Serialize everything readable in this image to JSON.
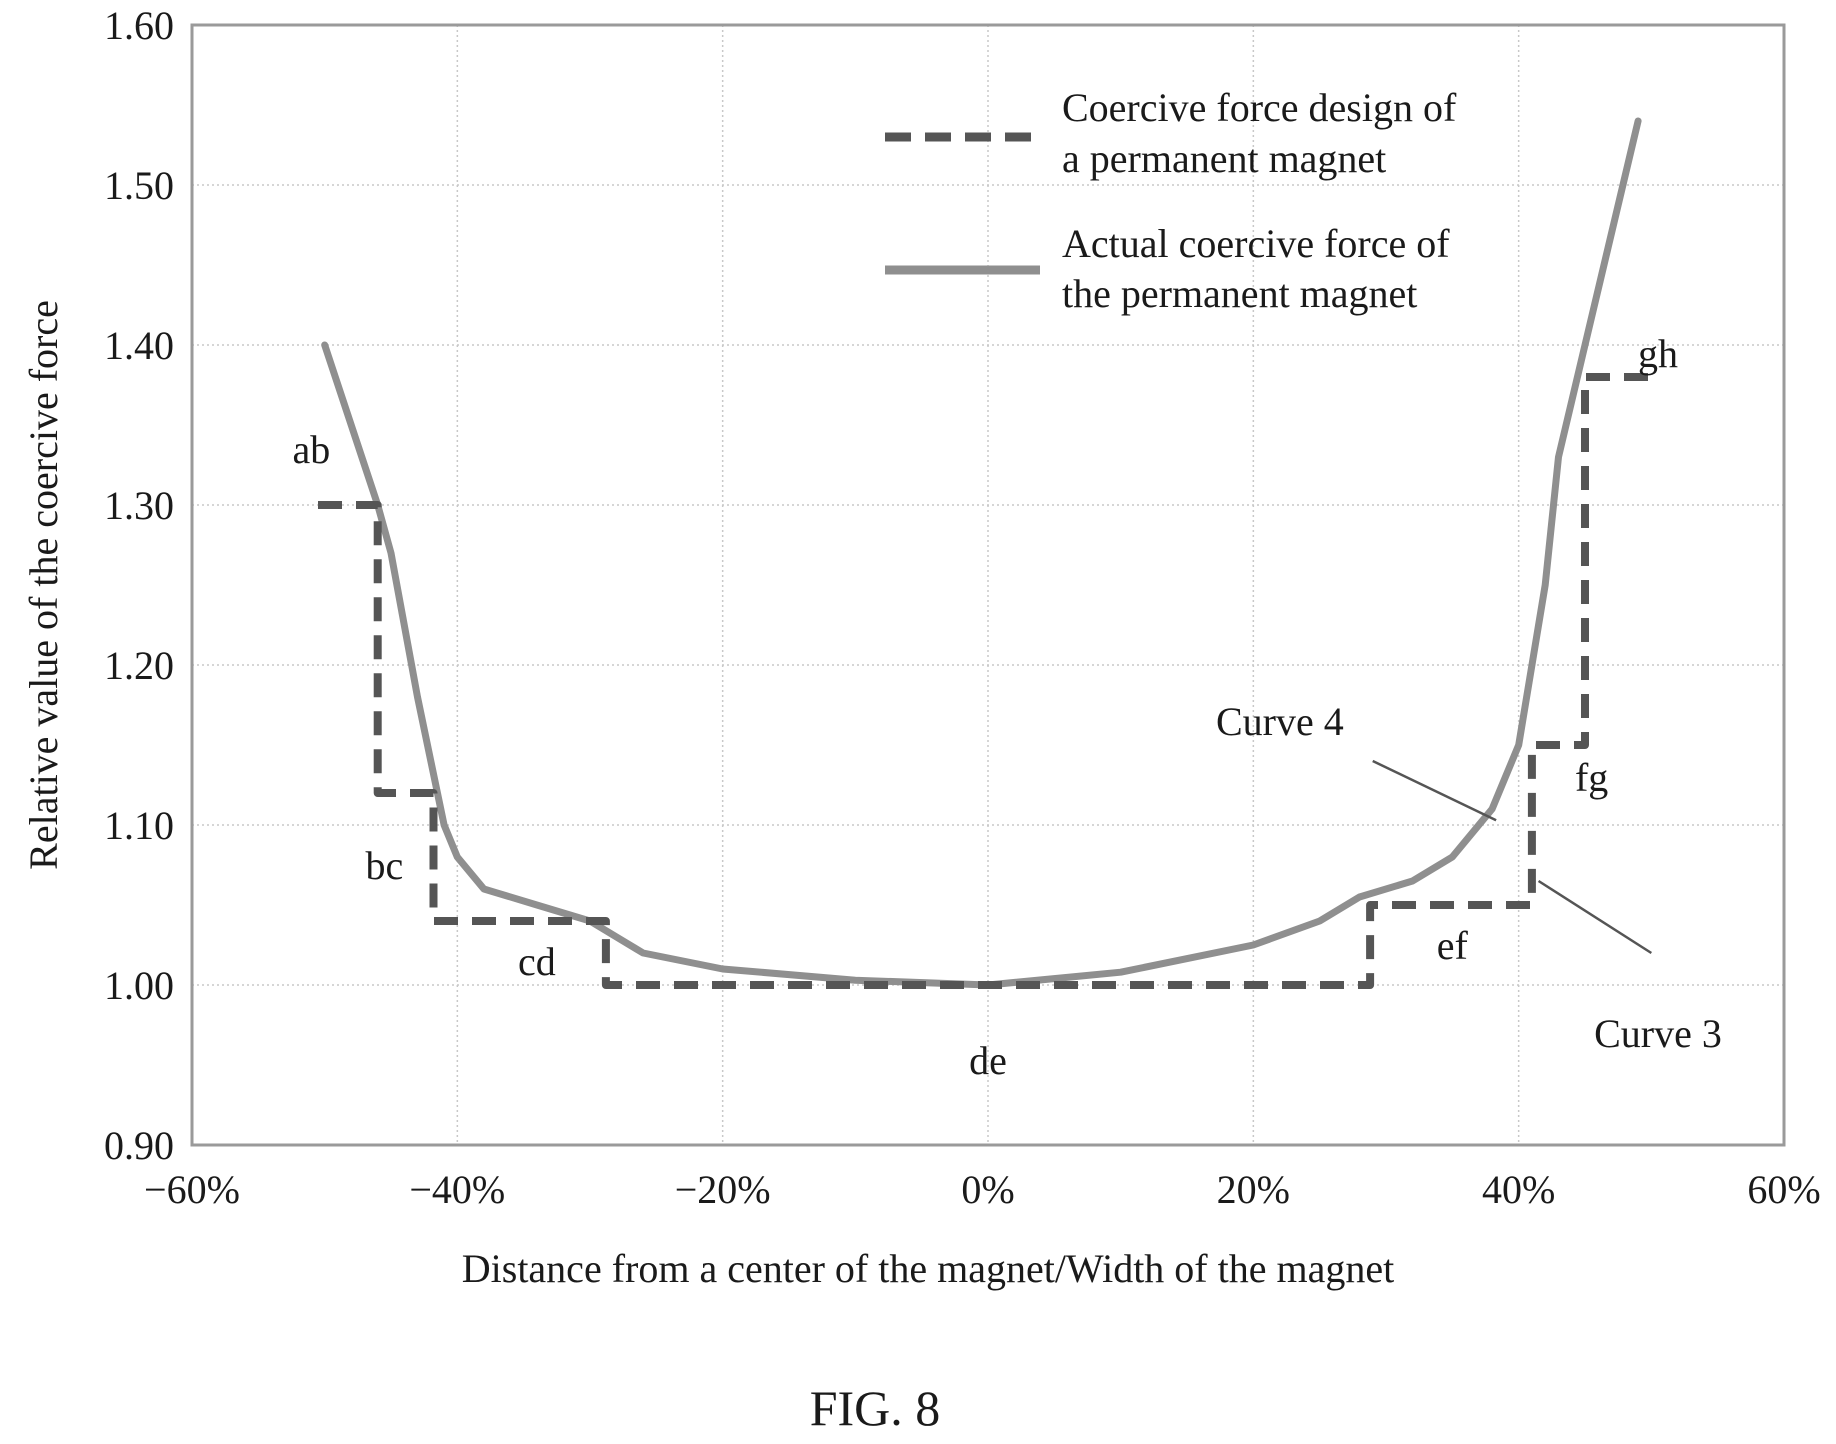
{
  "chart_data": {
    "type": "line",
    "xlabel": "Distance from a center of the magnet/Width of the magnet",
    "ylabel": "Relative value of the coercive force",
    "xlim": [
      -0.6,
      0.6
    ],
    "ylim": [
      0.9,
      1.6
    ],
    "x_ticks": [
      "−60%",
      "−40%",
      "−20%",
      "0%",
      "20%",
      "40%",
      "60%"
    ],
    "y_ticks": [
      "0.90",
      "1.00",
      "1.10",
      "1.20",
      "1.30",
      "1.40",
      "1.50",
      "1.60"
    ],
    "grid": true,
    "legend_position": "top-right",
    "series": [
      {
        "name": "Coercive force design of a permanent magnet",
        "style": "dashed",
        "color": "#555555",
        "x": [
          -0.505,
          -0.46,
          -0.46,
          -0.418,
          -0.418,
          -0.288,
          -0.288,
          0.0,
          0.288,
          0.288,
          0.41,
          0.41,
          0.45,
          0.45,
          0.5
        ],
        "y": [
          1.3,
          1.3,
          1.12,
          1.12,
          1.04,
          1.04,
          1.0,
          1.0,
          1.0,
          1.05,
          1.05,
          1.15,
          1.15,
          1.38,
          1.38
        ]
      },
      {
        "name": "Actual coercive force of the permanent magnet",
        "style": "solid",
        "color": "#8f8f8f",
        "x": [
          -0.5,
          -0.46,
          -0.45,
          -0.43,
          -0.41,
          -0.4,
          -0.38,
          -0.34,
          -0.3,
          -0.28,
          -0.26,
          -0.2,
          -0.1,
          0.0,
          0.1,
          0.2,
          0.25,
          0.28,
          0.32,
          0.35,
          0.38,
          0.4,
          0.42,
          0.43,
          0.45,
          0.49
        ],
        "y": [
          1.4,
          1.3,
          1.27,
          1.18,
          1.1,
          1.08,
          1.06,
          1.05,
          1.04,
          1.03,
          1.02,
          1.01,
          1.003,
          1.0,
          1.008,
          1.025,
          1.04,
          1.055,
          1.065,
          1.08,
          1.11,
          1.15,
          1.25,
          1.33,
          1.4,
          1.54
        ]
      }
    ],
    "annotations": [
      {
        "text": "ab",
        "x": -0.51,
        "y": 1.335
      },
      {
        "text": "bc",
        "x": -0.455,
        "y": 1.075
      },
      {
        "text": "cd",
        "x": -0.34,
        "y": 1.015
      },
      {
        "text": "de",
        "x": 0.0,
        "y": 0.953
      },
      {
        "text": "ef",
        "x": 0.35,
        "y": 1.025
      },
      {
        "text": "fg",
        "x": 0.455,
        "y": 1.13
      },
      {
        "text": "gh",
        "x": 0.505,
        "y": 1.395
      },
      {
        "text": "Curve 4",
        "x": 0.22,
        "y": 1.165
      },
      {
        "text": "Curve 3",
        "x": 0.505,
        "y": 0.97
      }
    ],
    "leaders": [
      {
        "from_x": 0.29,
        "from_y": 1.14,
        "to_x": 0.383,
        "to_y": 1.103
      },
      {
        "from_x": 0.415,
        "from_y": 1.065,
        "to_x": 0.5,
        "to_y": 1.02
      }
    ]
  },
  "caption": "FIG. 8"
}
